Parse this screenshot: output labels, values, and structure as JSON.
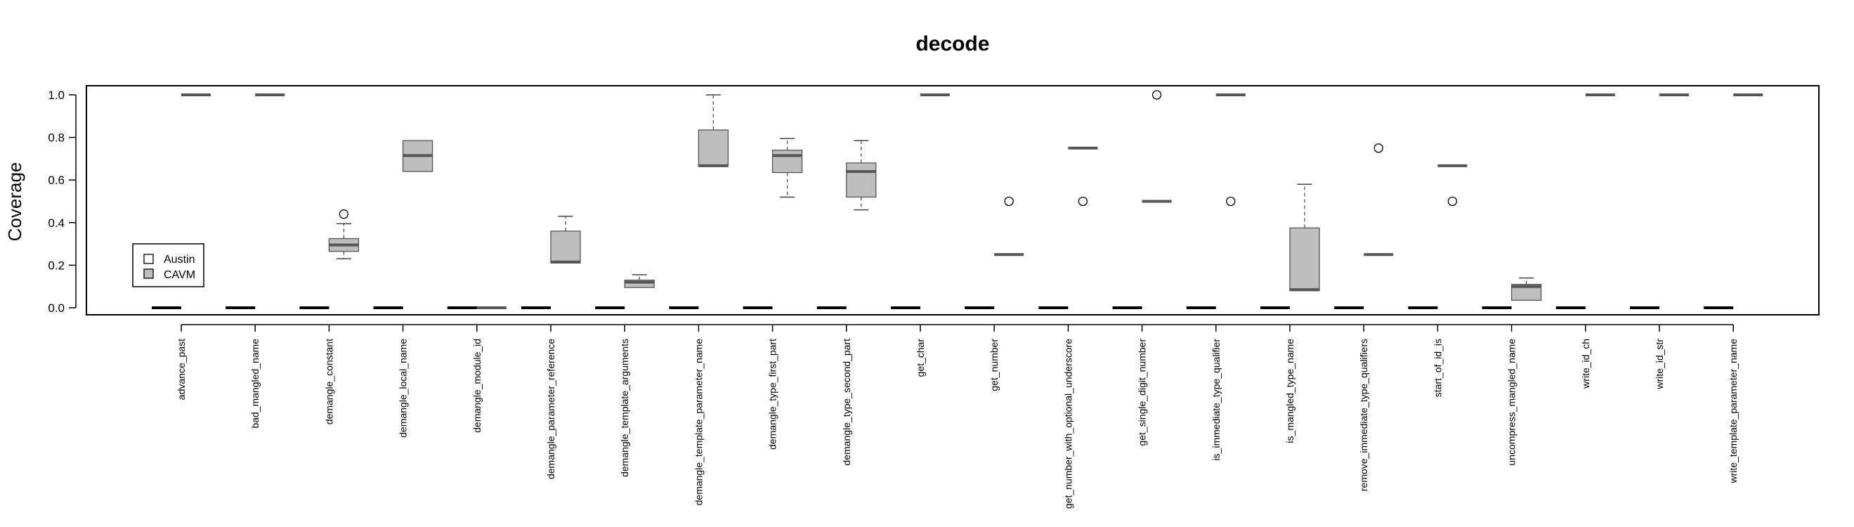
{
  "chart_data": {
    "type": "box",
    "title": "decode",
    "xlabel": "",
    "ylabel": "Coverage",
    "ylim": [
      0,
      1
    ],
    "yticks": [
      "0.0",
      "0.2",
      "0.4",
      "0.6",
      "0.8",
      "1.0"
    ],
    "grid": false,
    "legend_position": "left",
    "categories": [
      "advance_past",
      "bad_mangled_name",
      "demangle_constant",
      "demangle_local_name",
      "demangle_module_id",
      "demangle_parameter_reference",
      "demangle_template_arguments",
      "demangle_template_parameter_name",
      "demangle_type_first_part",
      "demangle_type_second_part",
      "get_char",
      "get_number",
      "get_number_with_optional_underscore",
      "get_single_digit_number",
      "is_immediate_type_qualifier",
      "is_mangled_type_name",
      "remove_immediate_type_qualifiers",
      "start_of_id_is",
      "uncompress_mangled_name",
      "write_id_ch",
      "write_id_str",
      "write_template_parameter_name"
    ],
    "series": [
      {
        "name": "Austin",
        "color": "#ffffff",
        "boxes": [
          {
            "min": 0,
            "q1": 0,
            "median": 0,
            "q3": 0,
            "max": 0,
            "outliers": []
          },
          {
            "min": 0,
            "q1": 0,
            "median": 0,
            "q3": 0,
            "max": 0,
            "outliers": []
          },
          {
            "min": 0,
            "q1": 0,
            "median": 0,
            "q3": 0,
            "max": 0,
            "outliers": []
          },
          {
            "min": 0,
            "q1": 0,
            "median": 0,
            "q3": 0,
            "max": 0,
            "outliers": []
          },
          {
            "min": 0,
            "q1": 0,
            "median": 0,
            "q3": 0,
            "max": 0,
            "outliers": []
          },
          {
            "min": 0,
            "q1": 0,
            "median": 0,
            "q3": 0,
            "max": 0,
            "outliers": []
          },
          {
            "min": 0,
            "q1": 0,
            "median": 0,
            "q3": 0,
            "max": 0,
            "outliers": []
          },
          {
            "min": 0,
            "q1": 0,
            "median": 0,
            "q3": 0,
            "max": 0,
            "outliers": []
          },
          {
            "min": 0,
            "q1": 0,
            "median": 0,
            "q3": 0,
            "max": 0,
            "outliers": []
          },
          {
            "min": 0,
            "q1": 0,
            "median": 0,
            "q3": 0,
            "max": 0,
            "outliers": []
          },
          {
            "min": 0,
            "q1": 0,
            "median": 0,
            "q3": 0,
            "max": 0,
            "outliers": []
          },
          {
            "min": 0,
            "q1": 0,
            "median": 0,
            "q3": 0,
            "max": 0,
            "outliers": []
          },
          {
            "min": 0,
            "q1": 0,
            "median": 0,
            "q3": 0,
            "max": 0,
            "outliers": []
          },
          {
            "min": 0,
            "q1": 0,
            "median": 0,
            "q3": 0,
            "max": 0,
            "outliers": []
          },
          {
            "min": 0,
            "q1": 0,
            "median": 0,
            "q3": 0,
            "max": 0,
            "outliers": []
          },
          {
            "min": 0,
            "q1": 0,
            "median": 0,
            "q3": 0,
            "max": 0,
            "outliers": []
          },
          {
            "min": 0,
            "q1": 0,
            "median": 0,
            "q3": 0,
            "max": 0,
            "outliers": []
          },
          {
            "min": 0,
            "q1": 0,
            "median": 0,
            "q3": 0,
            "max": 0,
            "outliers": []
          },
          {
            "min": 0,
            "q1": 0,
            "median": 0,
            "q3": 0,
            "max": 0,
            "outliers": []
          },
          {
            "min": 0,
            "q1": 0,
            "median": 0,
            "q3": 0,
            "max": 0,
            "outliers": []
          },
          {
            "min": 0,
            "q1": 0,
            "median": 0,
            "q3": 0,
            "max": 0,
            "outliers": []
          },
          {
            "min": 0,
            "q1": 0,
            "median": 0,
            "q3": 0,
            "max": 0,
            "outliers": []
          }
        ]
      },
      {
        "name": "CAVM",
        "color": "#bebebe",
        "boxes": [
          {
            "min": 1,
            "q1": 1,
            "median": 1,
            "q3": 1,
            "max": 1,
            "outliers": []
          },
          {
            "min": 1,
            "q1": 1,
            "median": 1,
            "q3": 1,
            "max": 1,
            "outliers": []
          },
          {
            "min": 0.23,
            "q1": 0.265,
            "median": 0.295,
            "q3": 0.325,
            "max": 0.395,
            "outliers": [
              0.44
            ]
          },
          {
            "min": 0.64,
            "q1": 0.64,
            "median": 0.715,
            "q3": 0.785,
            "max": 0.785,
            "outliers": []
          },
          {
            "min": 0,
            "q1": 0,
            "median": 0,
            "q3": 0,
            "max": 0,
            "outliers": []
          },
          {
            "min": 0.21,
            "q1": 0.21,
            "median": 0.215,
            "q3": 0.36,
            "max": 0.43,
            "outliers": []
          },
          {
            "min": 0.095,
            "q1": 0.095,
            "median": 0.12,
            "q3": 0.13,
            "max": 0.155,
            "outliers": []
          },
          {
            "min": 0.665,
            "q1": 0.665,
            "median": 0.667,
            "q3": 0.835,
            "max": 1,
            "outliers": []
          },
          {
            "min": 0.52,
            "q1": 0.635,
            "median": 0.715,
            "q3": 0.74,
            "max": 0.795,
            "outliers": []
          },
          {
            "min": 0.46,
            "q1": 0.52,
            "median": 0.64,
            "q3": 0.68,
            "max": 0.785,
            "outliers": []
          },
          {
            "min": 1,
            "q1": 1,
            "median": 1,
            "q3": 1,
            "max": 1,
            "outliers": []
          },
          {
            "min": 0.25,
            "q1": 0.25,
            "median": 0.25,
            "q3": 0.25,
            "max": 0.25,
            "outliers": [
              0.5
            ]
          },
          {
            "min": 0.75,
            "q1": 0.75,
            "median": 0.75,
            "q3": 0.75,
            "max": 0.75,
            "outliers": [
              0.5
            ]
          },
          {
            "min": 0.5,
            "q1": 0.5,
            "median": 0.5,
            "q3": 0.5,
            "max": 0.5,
            "outliers": [
              1
            ]
          },
          {
            "min": 1,
            "q1": 1,
            "median": 1,
            "q3": 1,
            "max": 1,
            "outliers": [
              0.5
            ]
          },
          {
            "min": 0.08,
            "q1": 0.08,
            "median": 0.085,
            "q3": 0.375,
            "max": 0.58,
            "outliers": []
          },
          {
            "min": 0.25,
            "q1": 0.25,
            "median": 0.25,
            "q3": 0.25,
            "max": 0.25,
            "outliers": [
              0.75
            ]
          },
          {
            "min": 0.667,
            "q1": 0.667,
            "median": 0.667,
            "q3": 0.667,
            "max": 0.667,
            "outliers": [
              0.5
            ]
          },
          {
            "min": 0.035,
            "q1": 0.035,
            "median": 0.1,
            "q3": 0.11,
            "max": 0.14,
            "outliers": []
          },
          {
            "min": 1,
            "q1": 1,
            "median": 1,
            "q3": 1,
            "max": 1,
            "outliers": []
          },
          {
            "min": 1,
            "q1": 1,
            "median": 1,
            "q3": 1,
            "max": 1,
            "outliers": []
          },
          {
            "min": 1,
            "q1": 1,
            "median": 1,
            "q3": 1,
            "max": 1,
            "outliers": []
          }
        ]
      }
    ]
  }
}
